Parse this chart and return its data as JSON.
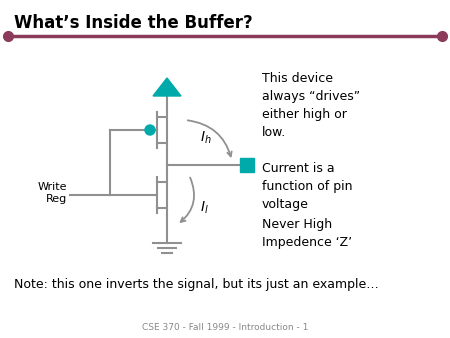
{
  "title": "What’s Inside the Buffer?",
  "subtitle": "CSE 370 - Fall 1999 - Introduction - 1",
  "note": "Note: this one inverts the signal, but its just an example…",
  "text1": "This device\nalways “drives”\neither high or\nlow.",
  "text2": "Current is a\nfunction of pin\nvoltage",
  "text3": "Never High\nImpedence ‘Z’",
  "label_write": "Write\nReg",
  "bg_color": "#ffffff",
  "title_color": "#000000",
  "header_line_color": "#8B3A5A",
  "teal_color": "#00AAAA",
  "wire_color": "#909090",
  "body_text_color": "#000000",
  "subtitle_color": "#888888"
}
